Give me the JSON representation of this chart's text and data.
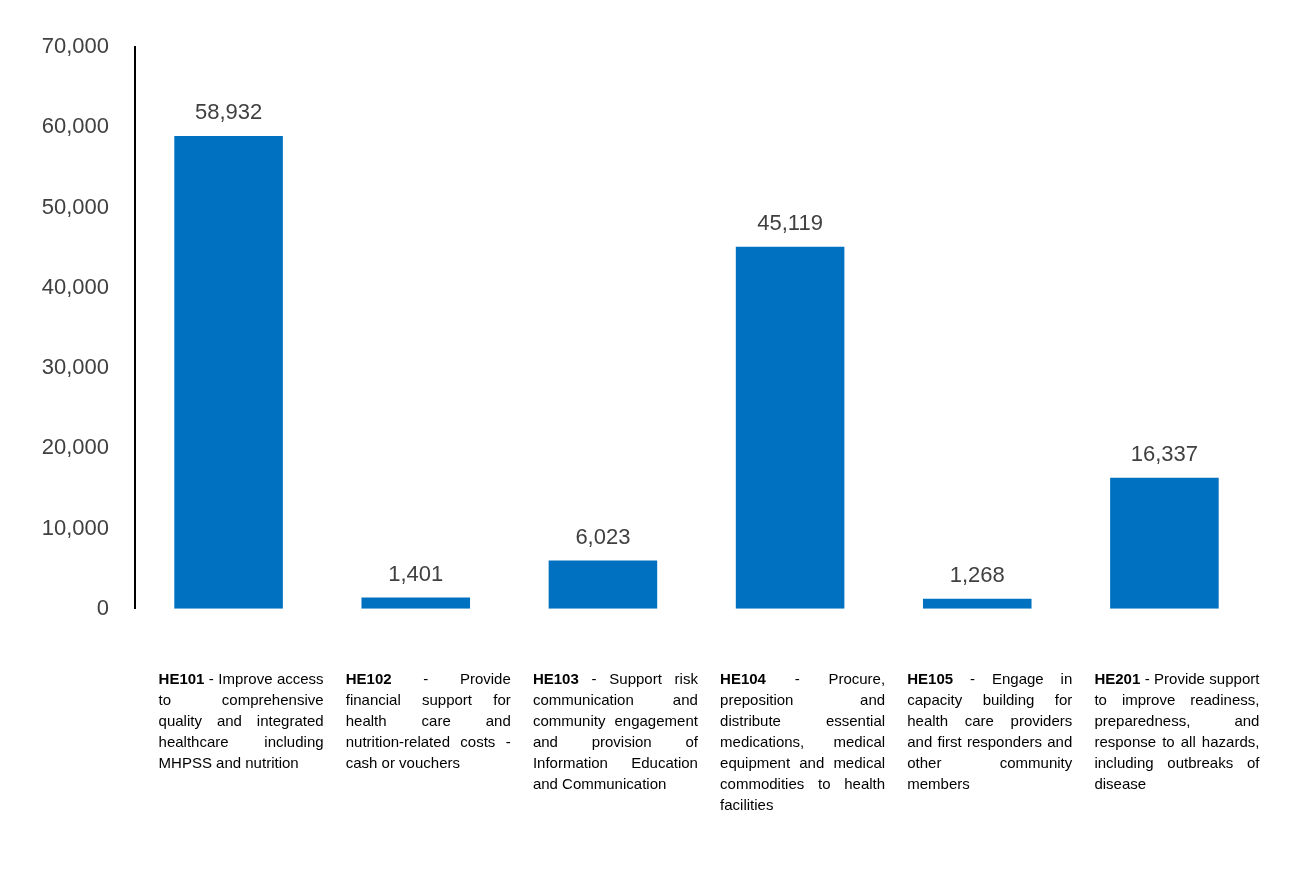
{
  "chart_data": {
    "type": "bar",
    "categories": [
      "HE101 - Improve access to comprehensive quality and integrated healthcare including MHPSS and nutrition",
      "HE102 - Provide financial support for health care and nutrition-related costs - cash or vouchers",
      "HE103 - Support risk communication and community engagement and provision of Information Education and Communication",
      "HE104 - Procure, preposition and distribute essential medications, medical equipment and medical commodities to health facilities",
      "HE105 - Engage in capacity building for health care providers and first responders and other community members",
      "HE201 - Provide support to improve readiness, preparedness, and response to all hazards, including outbreaks of disease"
    ],
    "values": [
      58932,
      1401,
      6023,
      45119,
      1268,
      16337
    ],
    "color": "#0070c0",
    "value_labels": [
      "58,932",
      "1,401",
      "6,023",
      "45,119",
      "1,268",
      "16,337"
    ],
    "ylim": [
      0,
      70000
    ],
    "yticks": [
      0,
      {
        "value": 10000,
        "label": "10,000"
      },
      {
        "value": 20000,
        "label": "20,000"
      },
      {
        "value": 30000,
        "label": "30,000"
      },
      {
        "value": 40000,
        "label": "40,000"
      },
      {
        "value": 50000,
        "label": "50,000"
      },
      {
        "value": 60000,
        "label": "60,000"
      },
      {
        "value": 70000,
        "label": "70,000"
      }
    ],
    "grid": false,
    "legend": false
  }
}
